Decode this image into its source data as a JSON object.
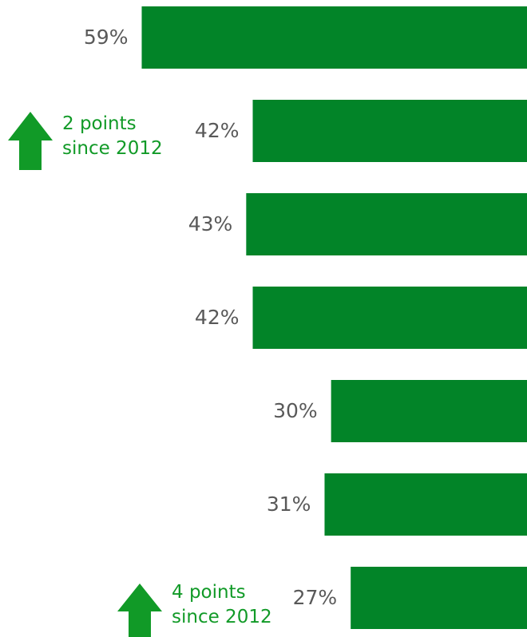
{
  "chart_data": {
    "type": "bar",
    "orientation": "horizontal",
    "values": [
      59,
      42,
      43,
      42,
      30,
      31,
      27
    ],
    "value_labels": [
      "59%",
      "42%",
      "43%",
      "42%",
      "30%",
      "31%",
      "27%"
    ],
    "color": "#028428",
    "xlim": [
      0,
      80.7
    ],
    "annotations": [
      {
        "lines": [
          "2 points",
          "since 2012"
        ],
        "color": "#119a27"
      },
      {
        "lines": [
          "4 points",
          "since 2012"
        ],
        "color": "#119a27"
      }
    ]
  }
}
